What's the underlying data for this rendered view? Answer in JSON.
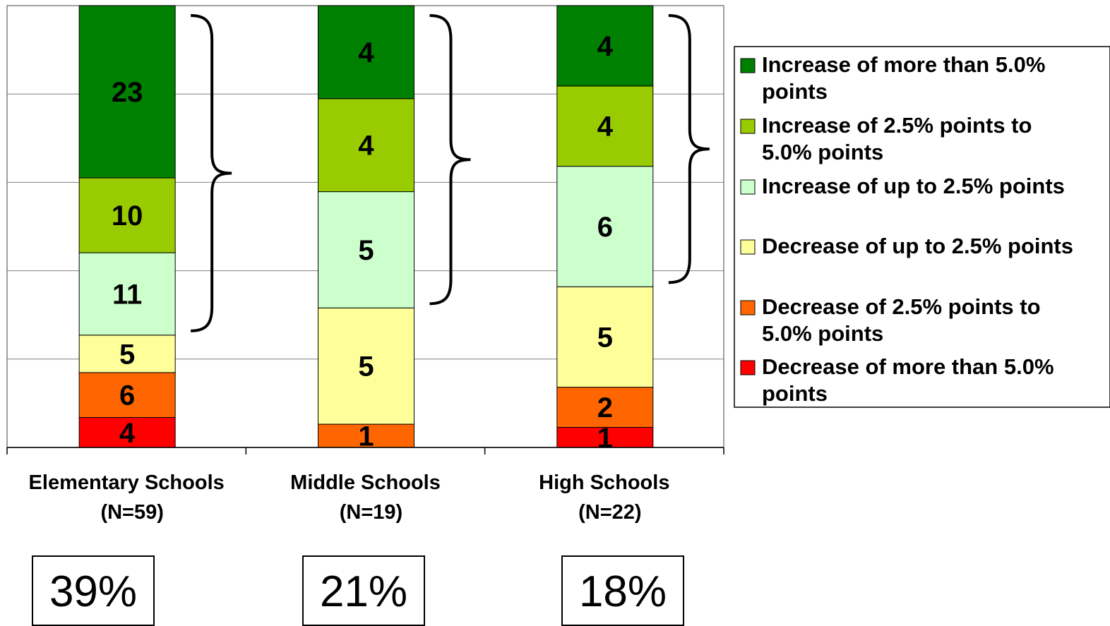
{
  "chart_data": {
    "type": "bar",
    "stacked": true,
    "categories": [
      "Elementary Schools",
      "Middle Schools",
      "High Schools"
    ],
    "category_counts": [
      "(N=59)",
      "(N=19)",
      "(N=22)"
    ],
    "series": [
      {
        "name": "Decrease of more than 5.0% points",
        "color": "#ff0000",
        "values": [
          4,
          0,
          1
        ]
      },
      {
        "name": "Decrease of 2.5% points to 5.0% points",
        "color": "#ff6600",
        "values": [
          6,
          1,
          2
        ]
      },
      {
        "name": "Decrease of up to 2.5% points",
        "color": "#ffff99",
        "values": [
          5,
          5,
          5
        ]
      },
      {
        "name": "Increase of up to 2.5% points",
        "color": "#ccffcc",
        "values": [
          11,
          5,
          6
        ]
      },
      {
        "name": "Increase of 2.5% points to 5.0% points",
        "color": "#99cc00",
        "values": [
          10,
          4,
          4
        ]
      },
      {
        "name": "Increase of more than 5.0% points",
        "color": "#008000",
        "values": [
          23,
          4,
          4
        ]
      }
    ],
    "legend": {
      "position": "right",
      "entries": [
        {
          "lines": [
            "Increase of more than 5.0%",
            "points"
          ],
          "color": "#008000"
        },
        {
          "lines": [
            "Increase of 2.5% points to",
            "5.0% points"
          ],
          "color": "#99cc00"
        },
        {
          "lines": [
            "Increase of up to 2.5% points"
          ],
          "color": "#ccffcc"
        },
        {
          "lines": [
            "Decrease of up to 2.5% points"
          ],
          "color": "#ffff99"
        },
        {
          "lines": [
            "Decrease of 2.5% points to",
            "5.0% points"
          ],
          "color": "#ff6600"
        },
        {
          "lines": [
            "Decrease of more than 5.0%",
            "points"
          ],
          "color": "#ff0000"
        }
      ]
    },
    "ylim": [
      0,
      100
    ],
    "grid": true,
    "percent_boxes": [
      "39%",
      "21%",
      "18%"
    ]
  }
}
